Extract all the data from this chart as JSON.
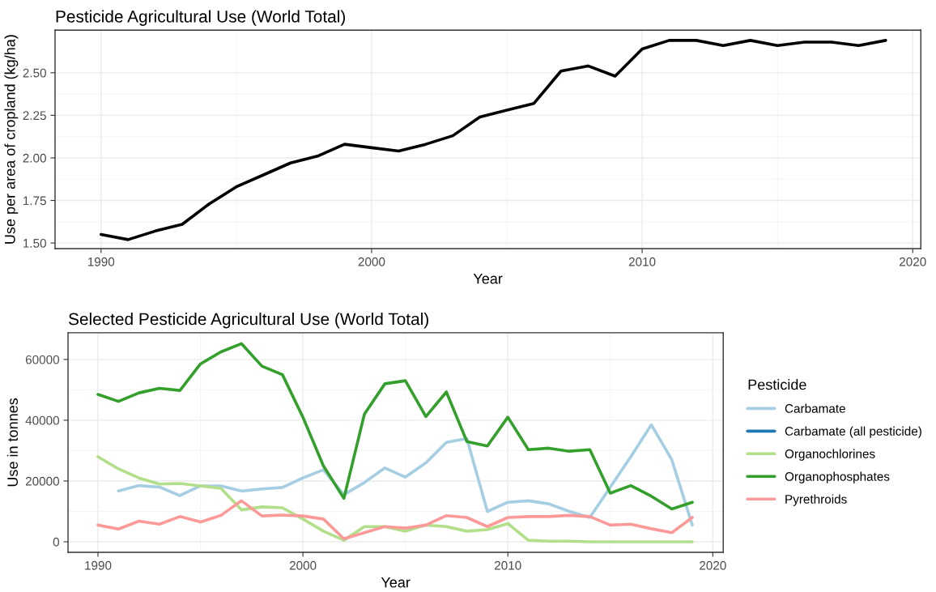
{
  "chart_data": [
    {
      "type": "line",
      "title": "Pesticide Agricultural Use (World Total)",
      "xlabel": "Year",
      "ylabel": "Use per area of cropland (kg/ha)",
      "x": [
        1990,
        1991,
        1992,
        1993,
        1994,
        1995,
        1996,
        1997,
        1998,
        1999,
        2000,
        2001,
        2002,
        2003,
        2004,
        2005,
        2006,
        2007,
        2008,
        2009,
        2010,
        2011,
        2012,
        2013,
        2014,
        2015,
        2016,
        2017,
        2018,
        2019
      ],
      "series": [
        {
          "color": "#000000",
          "values": [
            1.55,
            1.52,
            1.57,
            1.61,
            1.73,
            1.83,
            1.9,
            1.97,
            2.01,
            2.08,
            2.06,
            2.04,
            2.08,
            2.13,
            2.24,
            2.28,
            2.32,
            2.51,
            2.54,
            2.48,
            2.64,
            2.69,
            2.69,
            2.66,
            2.69,
            2.66,
            2.68,
            2.68,
            2.66,
            2.69
          ]
        }
      ],
      "xlim": [
        1988.3,
        2020.3
      ],
      "ylim": [
        1.467,
        2.75
      ],
      "xticks": [
        1990,
        2000,
        2010,
        2020
      ],
      "yticks": [
        {
          "value": 1.5,
          "label": "1.50"
        },
        {
          "value": 1.75,
          "label": "1.75"
        },
        {
          "value": 2.0,
          "label": "2.00"
        },
        {
          "value": 2.25,
          "label": "2.25"
        },
        {
          "value": 2.5,
          "label": "2.50"
        }
      ],
      "grid": true
    },
    {
      "type": "line",
      "title": "Selected Pesticide Agricultural Use (World Total)",
      "xlabel": "Year",
      "ylabel": "Use in tonnes",
      "legend_title": "Pesticide",
      "legend": "right",
      "x": [
        1990,
        1991,
        1992,
        1993,
        1994,
        1995,
        1996,
        1997,
        1998,
        1999,
        2000,
        2001,
        2002,
        2003,
        2004,
        2005,
        2006,
        2007,
        2008,
        2009,
        2010,
        2011,
        2012,
        2013,
        2014,
        2015,
        2016,
        2017,
        2018,
        2019
      ],
      "series": [
        {
          "name": "Carbamate",
          "color": "#a6cee3",
          "values": [
            null,
            16700,
            18500,
            18000,
            15200,
            18400,
            18400,
            16700,
            17400,
            17900,
            21000,
            23700,
            15500,
            19500,
            24300,
            21300,
            26000,
            32700,
            34000,
            10000,
            13000,
            13500,
            12500,
            10000,
            8000,
            18000,
            28000,
            38500,
            27000,
            5500
          ]
        },
        {
          "name": "Carbamate (all pesticide)",
          "color": "#1f78b4",
          "values": [
            null,
            null,
            null,
            null,
            null,
            null,
            null,
            null,
            null,
            null,
            null,
            null,
            null,
            null,
            null,
            null,
            null,
            null,
            null,
            null,
            null,
            null,
            null,
            null,
            null,
            null,
            null,
            null,
            null,
            null
          ]
        },
        {
          "name": "Organochlorines",
          "color": "#b2df8a",
          "values": [
            28000,
            24000,
            21000,
            19000,
            19200,
            18400,
            17600,
            10500,
            11500,
            11200,
            7500,
            3500,
            500,
            5000,
            5000,
            3500,
            5500,
            5000,
            3500,
            4000,
            6000,
            500,
            200,
            200,
            0,
            0,
            0,
            0,
            0,
            0
          ]
        },
        {
          "name": "Organophosphates",
          "color": "#33a02c",
          "values": [
            48500,
            46200,
            49000,
            50500,
            49800,
            58500,
            62500,
            65200,
            57800,
            55000,
            41000,
            25000,
            14300,
            42000,
            52000,
            53000,
            41200,
            49300,
            33000,
            31500,
            41000,
            30300,
            30800,
            29800,
            30300,
            16000,
            18500,
            15000,
            10800,
            13000
          ]
        },
        {
          "name": "Pyrethroids",
          "color": "#fb9a99",
          "values": [
            5500,
            4200,
            6800,
            5800,
            8300,
            6500,
            8700,
            13500,
            8500,
            8800,
            8500,
            7500,
            1000,
            3000,
            5000,
            4500,
            5500,
            8600,
            8000,
            5000,
            8000,
            8300,
            8300,
            8700,
            8300,
            5500,
            5800,
            4300,
            3000,
            8000
          ]
        }
      ],
      "xlim": [
        1988.54,
        2020.51
      ],
      "ylim": [
        -3470,
        68800
      ],
      "xticks": [
        1990,
        2000,
        2010,
        2020
      ],
      "yticks": [
        0,
        20000,
        40000,
        60000
      ],
      "grid": true
    }
  ]
}
